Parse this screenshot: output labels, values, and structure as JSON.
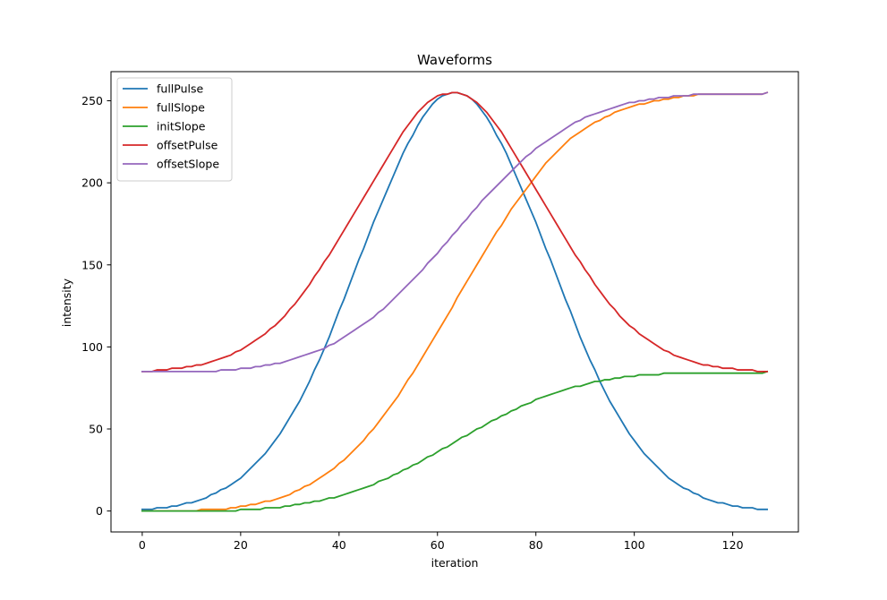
{
  "chart_data": {
    "type": "line",
    "title": "Waveforms",
    "xlabel": "iteration",
    "ylabel": "intensity",
    "xlim": [
      -6.35,
      133.35
    ],
    "ylim": [
      -12.75,
      267.75
    ],
    "xticks": [
      0,
      20,
      40,
      60,
      80,
      100,
      120
    ],
    "yticks": [
      0,
      50,
      100,
      150,
      200,
      250
    ],
    "grid": false,
    "legend_position": "upper-left",
    "x": [
      0,
      1,
      2,
      3,
      4,
      5,
      6,
      7,
      8,
      9,
      10,
      11,
      12,
      13,
      14,
      15,
      16,
      17,
      18,
      19,
      20,
      21,
      22,
      23,
      24,
      25,
      26,
      27,
      28,
      29,
      30,
      31,
      32,
      33,
      34,
      35,
      36,
      37,
      38,
      39,
      40,
      41,
      42,
      43,
      44,
      45,
      46,
      47,
      48,
      49,
      50,
      51,
      52,
      53,
      54,
      55,
      56,
      57,
      58,
      59,
      60,
      61,
      62,
      63,
      64,
      65,
      66,
      67,
      68,
      69,
      70,
      71,
      72,
      73,
      74,
      75,
      76,
      77,
      78,
      79,
      80,
      81,
      82,
      83,
      84,
      85,
      86,
      87,
      88,
      89,
      90,
      91,
      92,
      93,
      94,
      95,
      96,
      97,
      98,
      99,
      100,
      101,
      102,
      103,
      104,
      105,
      106,
      107,
      108,
      109,
      110,
      111,
      112,
      113,
      114,
      115,
      116,
      117,
      118,
      119,
      120,
      121,
      122,
      123,
      124,
      125,
      126,
      127
    ],
    "series": [
      {
        "name": "fullPulse",
        "color": "#1f77b4",
        "values": [
          1,
          1,
          1,
          2,
          2,
          2,
          3,
          3,
          4,
          5,
          5,
          6,
          7,
          8,
          10,
          11,
          13,
          14,
          16,
          18,
          20,
          23,
          26,
          29,
          32,
          35,
          39,
          43,
          47,
          52,
          57,
          62,
          67,
          73,
          79,
          86,
          92,
          99,
          106,
          114,
          122,
          129,
          137,
          145,
          153,
          160,
          168,
          176,
          183,
          190,
          197,
          204,
          211,
          218,
          224,
          229,
          235,
          240,
          244,
          248,
          251,
          253,
          254,
          255,
          255,
          254,
          253,
          251,
          248,
          244,
          240,
          235,
          229,
          224,
          218,
          211,
          204,
          197,
          190,
          183,
          176,
          168,
          160,
          153,
          145,
          137,
          129,
          122,
          114,
          106,
          99,
          92,
          86,
          79,
          73,
          67,
          62,
          57,
          52,
          47,
          43,
          39,
          35,
          32,
          29,
          26,
          23,
          20,
          18,
          16,
          14,
          13,
          11,
          10,
          8,
          7,
          6,
          5,
          5,
          4,
          3,
          3,
          2,
          2,
          2,
          1,
          1,
          1
        ]
      },
      {
        "name": "fullSlope",
        "color": "#ff7f0e",
        "values": [
          0,
          0,
          0,
          0,
          0,
          0,
          0,
          0,
          0,
          0,
          0,
          0,
          1,
          1,
          1,
          1,
          1,
          1,
          2,
          2,
          3,
          3,
          4,
          4,
          5,
          6,
          6,
          7,
          8,
          9,
          10,
          12,
          13,
          15,
          16,
          18,
          20,
          22,
          24,
          26,
          29,
          31,
          34,
          37,
          40,
          43,
          47,
          50,
          54,
          58,
          62,
          66,
          70,
          75,
          80,
          84,
          89,
          94,
          99,
          104,
          109,
          114,
          119,
          124,
          130,
          135,
          140,
          145,
          150,
          155,
          160,
          165,
          170,
          174,
          179,
          184,
          188,
          192,
          196,
          200,
          204,
          208,
          212,
          215,
          218,
          221,
          224,
          227,
          229,
          231,
          233,
          235,
          237,
          238,
          240,
          241,
          243,
          244,
          245,
          246,
          247,
          248,
          248,
          249,
          250,
          250,
          251,
          251,
          252,
          252,
          253,
          253,
          253,
          254,
          254,
          254,
          254,
          254,
          254,
          254,
          254,
          254,
          254,
          254,
          254,
          254,
          254,
          255
        ]
      },
      {
        "name": "initSlope",
        "color": "#2ca02c",
        "values": [
          0,
          0,
          0,
          0,
          0,
          0,
          0,
          0,
          0,
          0,
          0,
          0,
          0,
          0,
          0,
          0,
          0,
          0,
          0,
          0,
          1,
          1,
          1,
          1,
          1,
          2,
          2,
          2,
          2,
          3,
          3,
          4,
          4,
          5,
          5,
          6,
          6,
          7,
          8,
          8,
          9,
          10,
          11,
          12,
          13,
          14,
          15,
          16,
          18,
          19,
          20,
          22,
          23,
          25,
          26,
          28,
          29,
          31,
          33,
          34,
          36,
          38,
          39,
          41,
          43,
          45,
          46,
          48,
          50,
          51,
          53,
          55,
          56,
          58,
          59,
          61,
          62,
          64,
          65,
          66,
          68,
          69,
          70,
          71,
          72,
          73,
          74,
          75,
          76,
          76,
          77,
          78,
          79,
          79,
          80,
          80,
          81,
          81,
          82,
          82,
          82,
          83,
          83,
          83,
          83,
          83,
          84,
          84,
          84,
          84,
          84,
          84,
          84,
          84,
          84,
          84,
          84,
          84,
          84,
          84,
          84,
          84,
          84,
          84,
          84,
          84,
          84,
          85
        ]
      },
      {
        "name": "offsetPulse",
        "color": "#d62728",
        "values": [
          85,
          85,
          85,
          86,
          86,
          86,
          87,
          87,
          87,
          88,
          88,
          89,
          89,
          90,
          91,
          92,
          93,
          94,
          95,
          97,
          98,
          100,
          102,
          104,
          106,
          108,
          111,
          113,
          116,
          119,
          123,
          126,
          130,
          134,
          138,
          143,
          147,
          152,
          156,
          161,
          166,
          171,
          176,
          181,
          186,
          191,
          196,
          201,
          206,
          211,
          216,
          221,
          226,
          231,
          235,
          239,
          243,
          246,
          249,
          251,
          253,
          254,
          254,
          255,
          255,
          254,
          253,
          251,
          249,
          246,
          243,
          239,
          235,
          231,
          226,
          221,
          216,
          211,
          206,
          201,
          196,
          191,
          186,
          181,
          176,
          171,
          166,
          161,
          156,
          152,
          147,
          143,
          138,
          134,
          130,
          126,
          123,
          119,
          116,
          113,
          111,
          108,
          106,
          104,
          102,
          100,
          98,
          97,
          95,
          94,
          93,
          92,
          91,
          90,
          89,
          89,
          88,
          88,
          87,
          87,
          87,
          86,
          86,
          86,
          86,
          85,
          85,
          85
        ]
      },
      {
        "name": "offsetSlope",
        "color": "#9467bd",
        "values": [
          85,
          85,
          85,
          85,
          85,
          85,
          85,
          85,
          85,
          85,
          85,
          85,
          85,
          85,
          85,
          85,
          86,
          86,
          86,
          86,
          87,
          87,
          87,
          88,
          88,
          89,
          89,
          90,
          90,
          91,
          92,
          93,
          94,
          95,
          96,
          97,
          98,
          99,
          101,
          102,
          104,
          106,
          108,
          110,
          112,
          114,
          116,
          118,
          121,
          123,
          126,
          129,
          132,
          135,
          138,
          141,
          144,
          147,
          151,
          154,
          157,
          161,
          164,
          168,
          171,
          175,
          178,
          182,
          185,
          189,
          192,
          195,
          198,
          201,
          204,
          207,
          210,
          213,
          216,
          218,
          221,
          223,
          225,
          227,
          229,
          231,
          233,
          235,
          237,
          238,
          240,
          241,
          242,
          243,
          244,
          245,
          246,
          247,
          248,
          249,
          249,
          250,
          250,
          251,
          251,
          252,
          252,
          252,
          253,
          253,
          253,
          253,
          254,
          254,
          254,
          254,
          254,
          254,
          254,
          254,
          254,
          254,
          254,
          254,
          254,
          254,
          254,
          255
        ]
      }
    ]
  }
}
